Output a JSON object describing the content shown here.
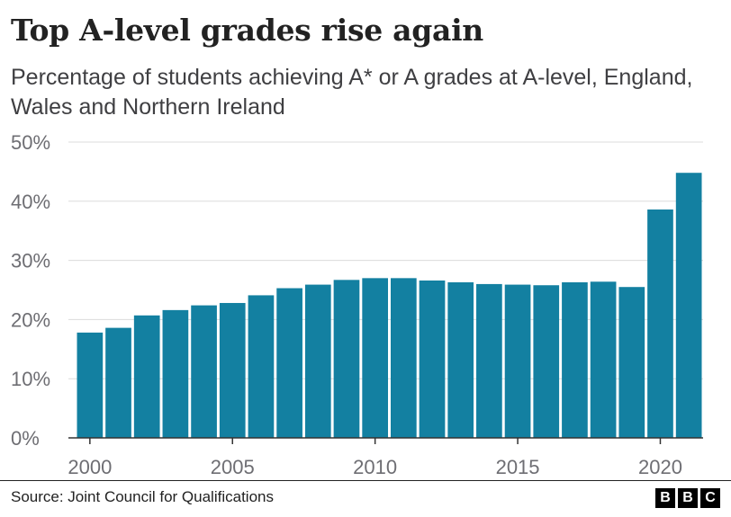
{
  "header": {
    "title": "Top A-level grades rise again",
    "subtitle": "Percentage of students achieving A* or A grades at A-level, England, Wales and Northern Ireland"
  },
  "footer": {
    "source": "Source: Joint Council for Qualifications",
    "logo_letters": [
      "B",
      "B",
      "C"
    ]
  },
  "chart_data": {
    "type": "bar",
    "title": "Top A-level grades rise again",
    "subtitle": "Percentage of students achieving A* or A grades at A-level, England, Wales and Northern Ireland",
    "xlabel": "",
    "ylabel": "",
    "categories": [
      2000,
      2001,
      2002,
      2003,
      2004,
      2005,
      2006,
      2007,
      2008,
      2009,
      2010,
      2011,
      2012,
      2013,
      2014,
      2015,
      2016,
      2017,
      2018,
      2019,
      2020,
      2021
    ],
    "values": [
      17.8,
      18.6,
      20.7,
      21.6,
      22.4,
      22.8,
      24.1,
      25.3,
      25.9,
      26.7,
      27.0,
      27.0,
      26.6,
      26.3,
      26.0,
      25.9,
      25.8,
      26.3,
      26.4,
      25.5,
      38.6,
      44.8
    ],
    "ylim": [
      0,
      50
    ],
    "y_ticks": [
      0,
      10,
      20,
      30,
      40,
      50
    ],
    "y_tick_labels": [
      "0%",
      "10%",
      "20%",
      "30%",
      "40%",
      "50%"
    ],
    "x_ticks": [
      2000,
      2005,
      2010,
      2015,
      2020
    ],
    "x_tick_labels": [
      "2000",
      "2005",
      "2010",
      "2015",
      "2020"
    ],
    "grid": true,
    "bar_color": "#1380a1",
    "legend": "none"
  }
}
